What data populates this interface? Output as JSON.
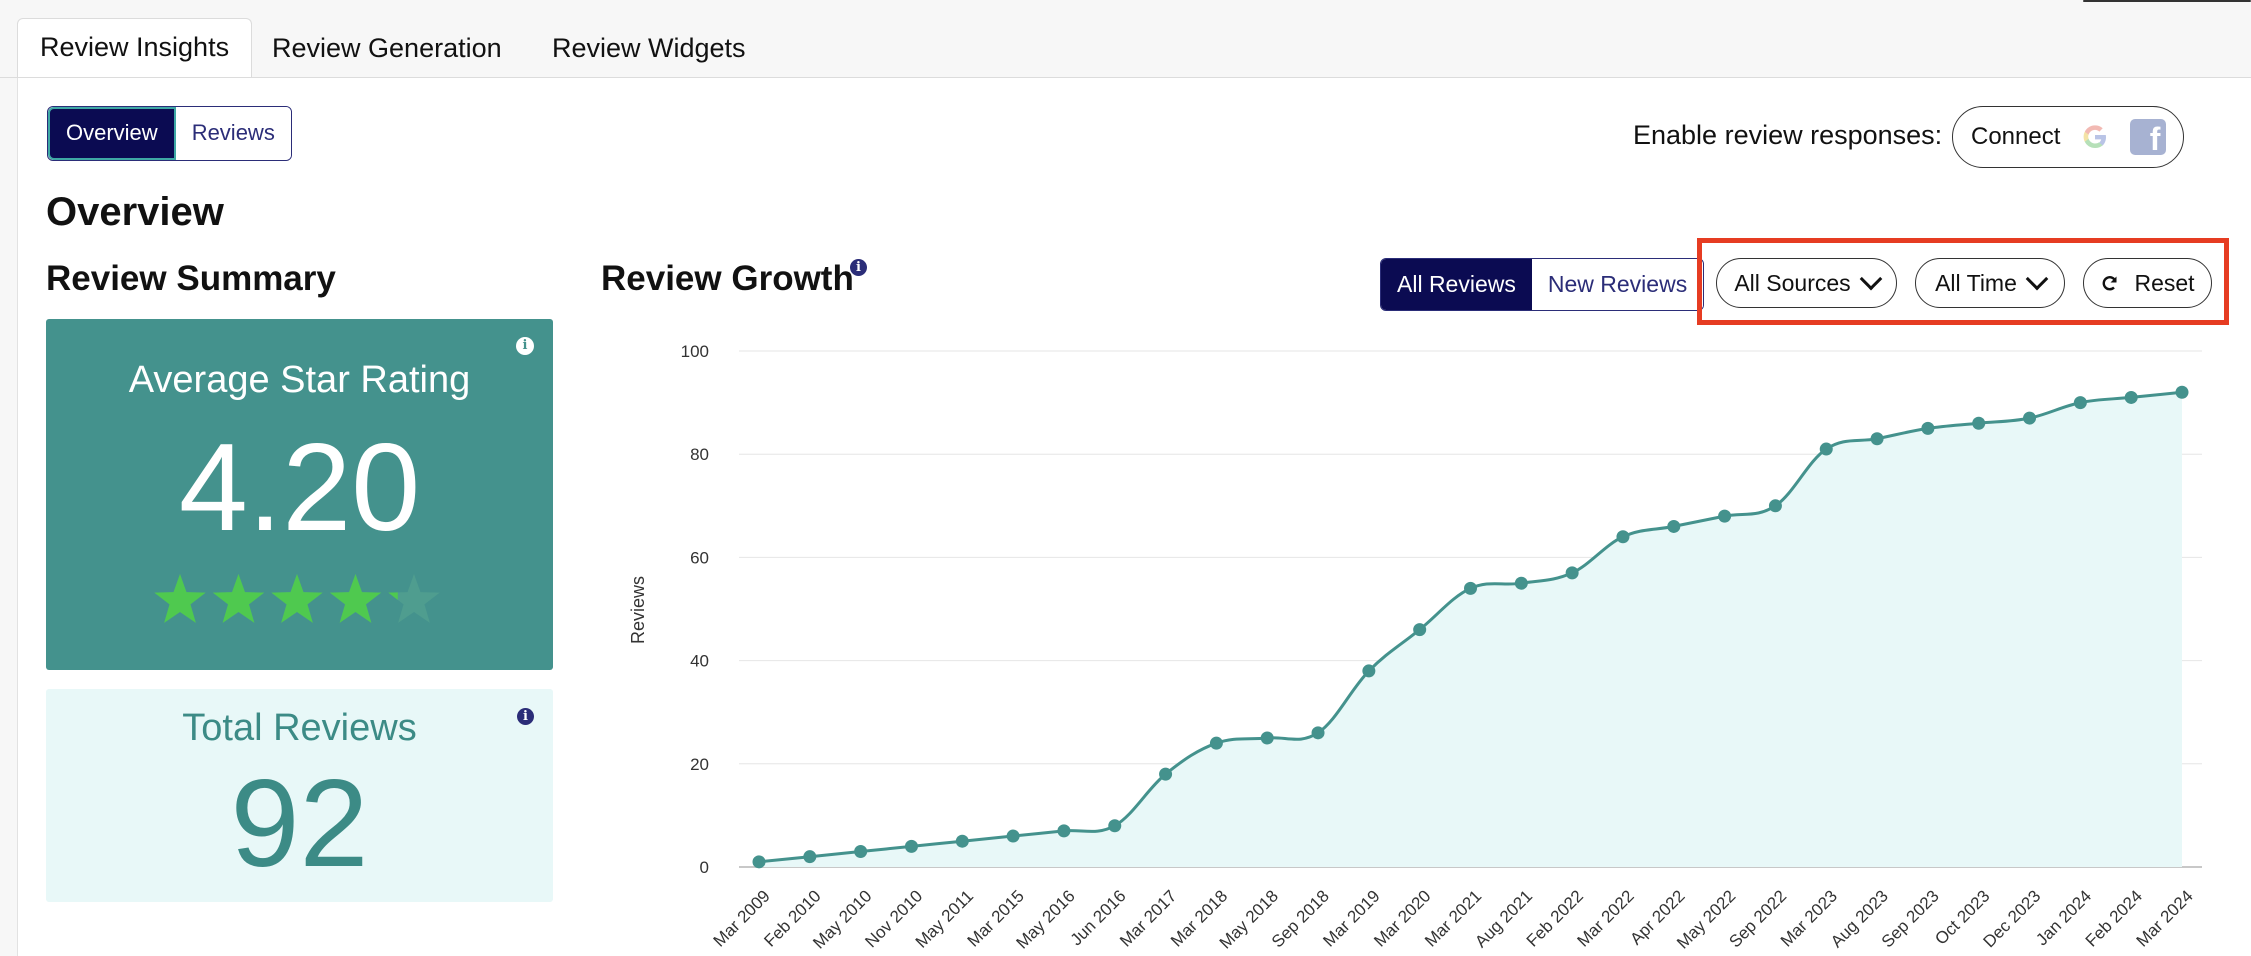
{
  "tabs": [
    {
      "label": "Review Insights",
      "active": true
    },
    {
      "label": "Review Generation",
      "active": false
    },
    {
      "label": "Review Widgets",
      "active": false
    }
  ],
  "view_toggle": {
    "overview": "Overview",
    "reviews": "Reviews",
    "selected": "Overview"
  },
  "enable_responses": {
    "label": "Enable review responses:",
    "connect_label": "Connect",
    "icons": [
      "google-icon",
      "facebook-icon"
    ]
  },
  "page_title": "Overview",
  "review_summary": {
    "heading": "Review Summary",
    "average_rating": {
      "title": "Average Star Rating",
      "value": "4.20",
      "stars": 4.2
    },
    "total_reviews": {
      "title": "Total Reviews",
      "value": "92"
    }
  },
  "review_growth": {
    "heading": "Review Growth",
    "toggle": {
      "all": "All Reviews",
      "new": "New Reviews",
      "selected": "All Reviews"
    },
    "filters": {
      "sources": "All Sources",
      "time": "All Time",
      "reset": "Reset"
    }
  },
  "colors": {
    "accent": "#44928d",
    "navy": "#0b0b52",
    "highlight": "#e63c22",
    "light_teal": "#e8f8f8",
    "star": "#4fc94f"
  },
  "chart_data": {
    "type": "area",
    "ylabel": "Reviews",
    "xlabel": "",
    "ylim": [
      0,
      100
    ],
    "yticks": [
      0,
      20,
      40,
      60,
      80,
      100
    ],
    "grid": true,
    "categories": [
      "Mar 2009",
      "Feb 2010",
      "May 2010",
      "Nov 2010",
      "May 2011",
      "Mar 2015",
      "May 2016",
      "Jun 2016",
      "Mar 2017",
      "Mar 2018",
      "May 2018",
      "Sep 2018",
      "Mar 2019",
      "Mar 2020",
      "Mar 2021",
      "Aug 2021",
      "Feb 2022",
      "Mar 2022",
      "Apr 2022",
      "May 2022",
      "Sep 2022",
      "Mar 2023",
      "Aug 2023",
      "Sep 2023",
      "Oct 2023",
      "Dec 2023",
      "Jan 2024",
      "Feb 2024",
      "Mar 2024"
    ],
    "series": [
      {
        "values": [
          1,
          2,
          3,
          4,
          5,
          6,
          7,
          8,
          18,
          24,
          25,
          26,
          38,
          46,
          54,
          55,
          57,
          64,
          66,
          68,
          70,
          81,
          83,
          85,
          86,
          87,
          90,
          91,
          92
        ]
      }
    ]
  }
}
